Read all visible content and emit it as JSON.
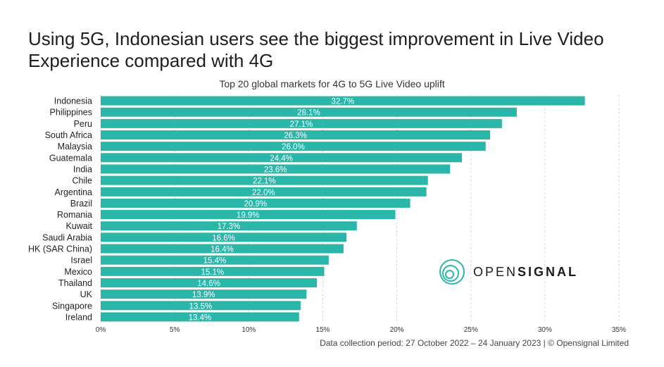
{
  "headline": "Using 5G, Indonesian users see the biggest improvement in Live Video Experience compared with 4G",
  "brand": {
    "light_part": "OPEN",
    "bold_part": "SIGNAL",
    "accent_color": "#2ab7a9"
  },
  "footer": "Data collection period: 27 October 2022 – 24 January 2023  |  © Opensignal Limited",
  "chart_data": {
    "type": "bar",
    "orientation": "horizontal",
    "title": "Top 20 global markets for 4G to 5G Live Video uplift",
    "categories": [
      "Indonesia",
      "Philippines",
      "Peru",
      "South Africa",
      "Malaysia",
      "Guatemala",
      "India",
      "Chile",
      "Argentina",
      "Brazil",
      "Romania",
      "Kuwait",
      "Saudi Arabia",
      "HK (SAR China)",
      "Israel",
      "Mexico",
      "Thailand",
      "UK",
      "Singapore",
      "Ireland"
    ],
    "values": [
      32.7,
      28.1,
      27.1,
      26.3,
      26.0,
      24.4,
      23.6,
      22.1,
      22.0,
      20.9,
      19.9,
      17.3,
      16.6,
      16.4,
      15.4,
      15.1,
      14.6,
      13.9,
      13.5,
      13.4
    ],
    "value_labels": [
      "32.7%",
      "28.1%",
      "27.1%",
      "26.3%",
      "26.0%",
      "24.4%",
      "23.6%",
      "22.1%",
      "22.0%",
      "20.9%",
      "19.9%",
      "17.3%",
      "16.6%",
      "16.4%",
      "15.4%",
      "15.1%",
      "14.6%",
      "13.9%",
      "13.5%",
      "13.4%"
    ],
    "xlim": [
      0,
      35
    ],
    "xticks": [
      0,
      5,
      10,
      15,
      20,
      25,
      30,
      35
    ],
    "xtick_labels": [
      "0%",
      "5%",
      "10%",
      "15%",
      "20%",
      "25%",
      "30%",
      "35%"
    ],
    "grid": "vertical dashed",
    "bar_color": "#2ab7a9",
    "xlabel": "",
    "ylabel": ""
  }
}
